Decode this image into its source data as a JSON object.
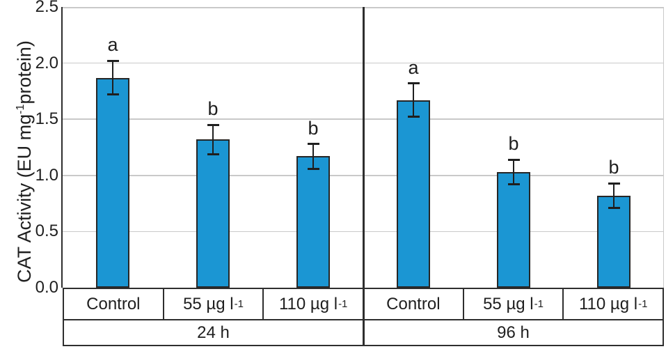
{
  "chart_data": {
    "type": "bar",
    "title": "",
    "ylabel": {
      "prefix": "CAT Activity (EU mg",
      "sup": "-1",
      "suffix": "protein)"
    },
    "xlabel": "",
    "ylim": [
      0,
      2.5
    ],
    "ytick_labels": [
      "0.0",
      "0.5",
      "1.0",
      "1.5",
      "2.0",
      "2.5"
    ],
    "grid": true,
    "legend": "none",
    "categories": [
      "Control",
      "55 µg l-1",
      "110 µg l-1"
    ],
    "groups": [
      {
        "label": "24 h",
        "bars": [
          {
            "label": {
              "text": "Control",
              "sup": ""
            },
            "value": 1.87,
            "err": 0.15,
            "letter": "a"
          },
          {
            "label": {
              "text": "55 µg l",
              "sup": "-1"
            },
            "value": 1.32,
            "err": 0.13,
            "letter": "b"
          },
          {
            "label": {
              "text": "110 µg l",
              "sup": "-1"
            },
            "value": 1.17,
            "err": 0.11,
            "letter": "b"
          }
        ]
      },
      {
        "label": "96 h",
        "bars": [
          {
            "label": {
              "text": "Control",
              "sup": ""
            },
            "value": 1.67,
            "err": 0.15,
            "letter": "a"
          },
          {
            "label": {
              "text": "55 µg l",
              "sup": "-1"
            },
            "value": 1.03,
            "err": 0.11,
            "letter": "b"
          },
          {
            "label": {
              "text": "110 µg l",
              "sup": "-1"
            },
            "value": 0.82,
            "err": 0.11,
            "letter": "b"
          }
        ]
      }
    ],
    "colors": {
      "bar_fill": "#1B96D3",
      "bar_border": "#262626",
      "gridline": "#c9c9c9",
      "axis": "#2e2e2e",
      "error_bar": "#1f1f1f",
      "text": "#1f1f1f",
      "background": "#ffffff"
    }
  }
}
